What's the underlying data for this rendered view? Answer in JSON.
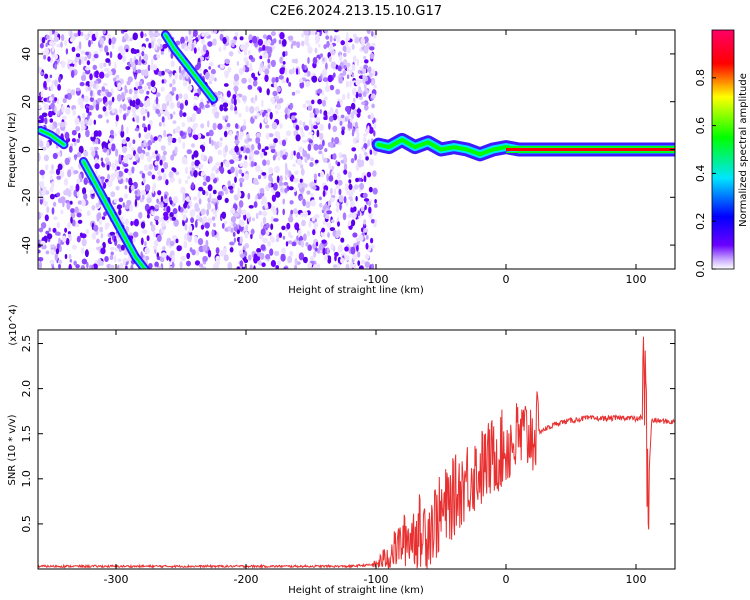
{
  "title": "C2E6.2024.213.15.10.G17",
  "chart_data": [
    {
      "type": "heatmap",
      "xlabel": "Height of straight line (km)",
      "ylabel": "Frequency (Hz)",
      "xlim": [
        -360,
        130
      ],
      "ylim": [
        -50,
        50
      ],
      "x_ticks": [
        -300,
        -200,
        -100,
        0,
        100
      ],
      "y_ticks": [
        -40,
        -20,
        0,
        20,
        40
      ],
      "noise_region_x": [
        -360,
        -100
      ],
      "colorbar": {
        "label": "Normalized spectral amplitude",
        "range": [
          0,
          1
        ],
        "ticks": [
          0.0,
          0.2,
          0.4,
          0.6,
          0.8
        ],
        "colormap": [
          "#ffffff",
          "#c8a8ff",
          "#6a00ff",
          "#0000ff",
          "#00e5ff",
          "#00ff00",
          "#ffff00",
          "#ff0000",
          "#ff0066"
        ]
      },
      "signals": [
        {
          "x": [
            -358,
            -350,
            -340
          ],
          "y": [
            8,
            6,
            2
          ]
        },
        {
          "x": [
            -325,
            -315,
            -305,
            -295,
            -285,
            -275
          ],
          "y": [
            -5,
            -15,
            -25,
            -35,
            -45,
            -52
          ]
        },
        {
          "x": [
            -262,
            -255,
            -245,
            -235,
            -225
          ],
          "y": [
            48,
            42,
            35,
            28,
            21
          ]
        },
        {
          "x": [
            -98,
            -90,
            -80,
            -70,
            -60,
            -50,
            -40,
            -30,
            -20,
            -10,
            0,
            10,
            30,
            60,
            100,
            130
          ],
          "y": [
            2,
            1,
            4,
            1,
            3,
            0,
            1,
            0,
            -2,
            0,
            1,
            0,
            0,
            0,
            0,
            0
          ]
        }
      ]
    },
    {
      "type": "line",
      "xlabel": "Height of straight line (km)",
      "ylabel": "SNR (10 * v/v)",
      "y_multiplier": "(x10^4)",
      "xlim": [
        -360,
        130
      ],
      "ylim": [
        0,
        2.65
      ],
      "x_ticks": [
        -300,
        -200,
        -100,
        0,
        100
      ],
      "y_ticks": [
        0.5,
        1.0,
        1.5,
        2.0,
        2.5
      ],
      "y_tick_labels": [
        "0.5",
        "1.0",
        "1.5",
        "2.0",
        "2.5"
      ],
      "color": "#e83030",
      "series": [
        {
          "x": [
            -360,
            -300,
            -200,
            -120,
            -100,
            -90,
            -80,
            -70,
            -60,
            -50,
            -40,
            -30,
            -20,
            -10,
            0,
            10,
            20,
            30,
            40,
            60,
            80,
            95,
            100,
            105,
            107,
            109,
            112,
            120,
            130
          ],
          "y": [
            0.03,
            0.03,
            0.03,
            0.03,
            0.05,
            0.15,
            0.3,
            0.4,
            0.45,
            0.6,
            0.8,
            1.0,
            1.1,
            1.25,
            1.35,
            1.45,
            1.5,
            1.55,
            1.62,
            1.67,
            1.67,
            1.68,
            1.66,
            1.68,
            2.6,
            0.7,
            1.65,
            1.64,
            1.63
          ]
        }
      ]
    }
  ]
}
